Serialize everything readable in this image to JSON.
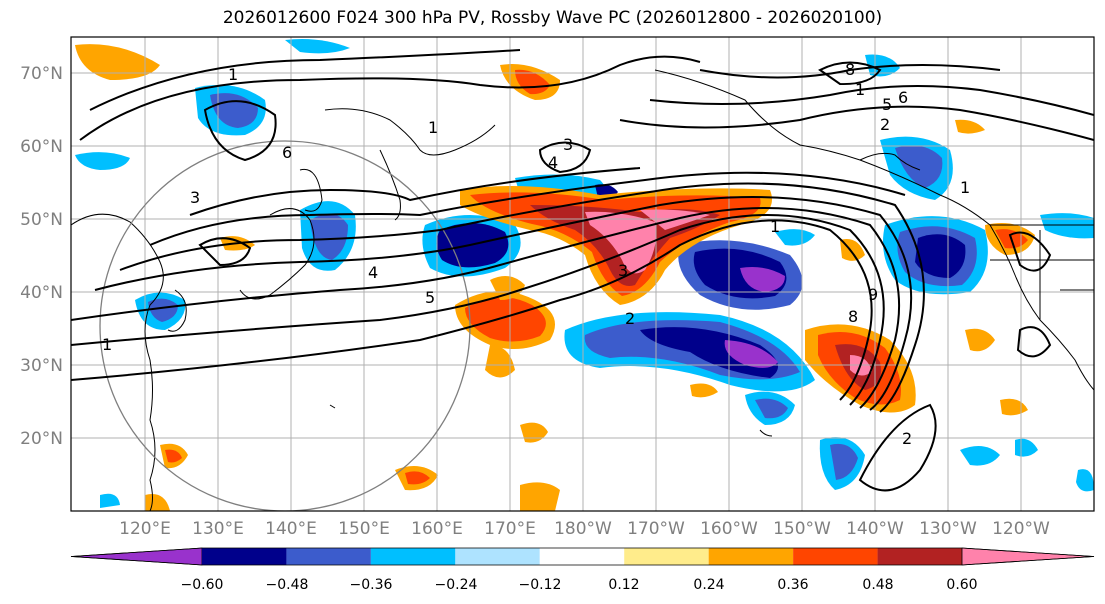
{
  "title": "2026012600 F024 300 hPa PV, Rossby Wave PC (2026012800 - 2026020100)",
  "lat_labels": [
    "70°N",
    "60°N",
    "50°N",
    "40°N",
    "30°N",
    "20°N"
  ],
  "lon_labels": [
    "120°E",
    "130°E",
    "140°E",
    "150°E",
    "160°E",
    "170°E",
    "180°W",
    "170°W",
    "160°W",
    "150°W",
    "140°W",
    "130°W",
    "120°W"
  ],
  "colorbar": {
    "labels": [
      "−0.60",
      "−0.48",
      "−0.36",
      "−0.24",
      "−0.12",
      "0.12",
      "0.24",
      "0.36",
      "0.48",
      "0.60"
    ],
    "colors": [
      "#9932cc",
      "#00008b",
      "#3c5ccc",
      "#00bfff",
      "#aee3ff",
      "#ffffff",
      "#ffec8b",
      "#ffa500",
      "#ff4500",
      "#b22222",
      "#ff82ab"
    ]
  },
  "contour_labels": [
    "1",
    "1",
    "1",
    "1",
    "1",
    "1",
    "2",
    "2",
    "2",
    "3",
    "3",
    "3",
    "4",
    "4",
    "5",
    "5",
    "6",
    "6",
    "8",
    "8",
    "9"
  ]
}
